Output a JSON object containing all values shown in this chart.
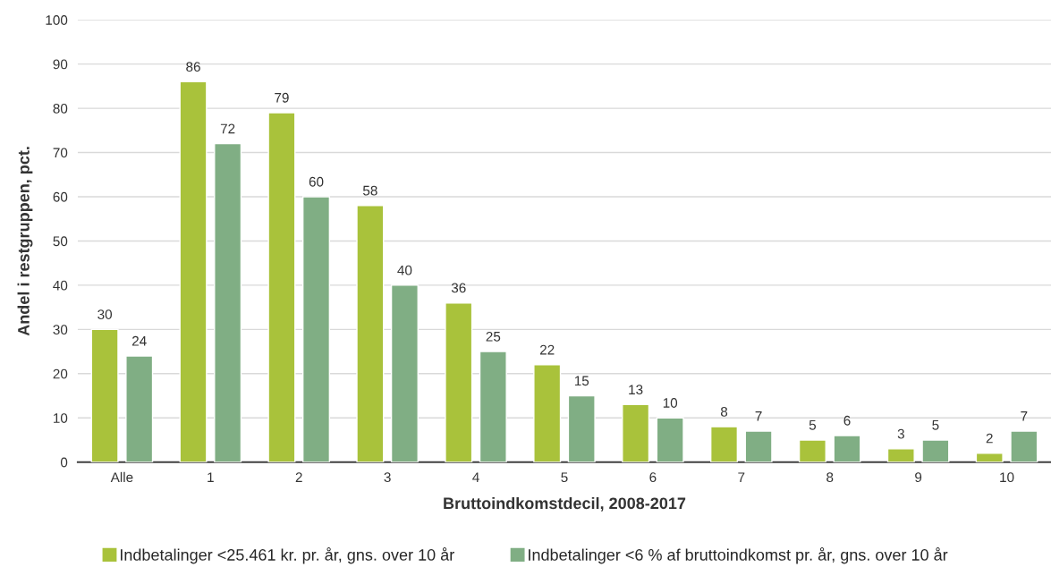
{
  "chart_data": {
    "type": "bar",
    "xlabel": "Bruttoindkomstdecil, 2008-2017",
    "ylabel": "Andel i restgruppen, pct.",
    "categories": [
      "Alle",
      "1",
      "2",
      "3",
      "4",
      "5",
      "6",
      "7",
      "8",
      "9",
      "10"
    ],
    "series": [
      {
        "name": "Indbetalinger <25.461 kr. pr. år, gns. over 10 år",
        "color": "#a9c23b",
        "values": [
          30,
          86,
          79,
          58,
          36,
          22,
          13,
          8,
          5,
          3,
          2
        ]
      },
      {
        "name": "Indbetalinger <6 % af bruttoindkomst pr. år, gns. over 10 år",
        "color": "#80ae84",
        "values": [
          24,
          72,
          60,
          40,
          25,
          15,
          10,
          7,
          6,
          5,
          7
        ]
      }
    ],
    "ylim": [
      0,
      100
    ],
    "yticks": [
      0,
      10,
      20,
      30,
      40,
      50,
      60,
      70,
      80,
      90,
      100
    ],
    "grid": "y",
    "legend": "bottom",
    "data_labels": true
  }
}
